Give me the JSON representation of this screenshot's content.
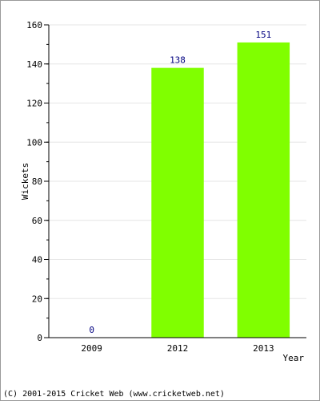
{
  "chart_data": {
    "type": "bar",
    "categories": [
      "2009",
      "2012",
      "2013"
    ],
    "values": [
      0,
      138,
      151
    ],
    "data_labels": [
      "0",
      "138",
      "151"
    ],
    "xlabel": "Year",
    "ylabel": "Wickets",
    "ylim": [
      0,
      160
    ],
    "yticks": [
      0,
      20,
      40,
      60,
      80,
      100,
      120,
      140,
      160
    ],
    "grid": true,
    "legend": "none",
    "colors": {
      "bar": "#80ff00",
      "data_label": "#000080",
      "grid": "#e6e6e6",
      "axis": "#000000"
    }
  },
  "footer": {
    "copyright": "(C) 2001-2015 Cricket Web (www.cricketweb.net)"
  }
}
